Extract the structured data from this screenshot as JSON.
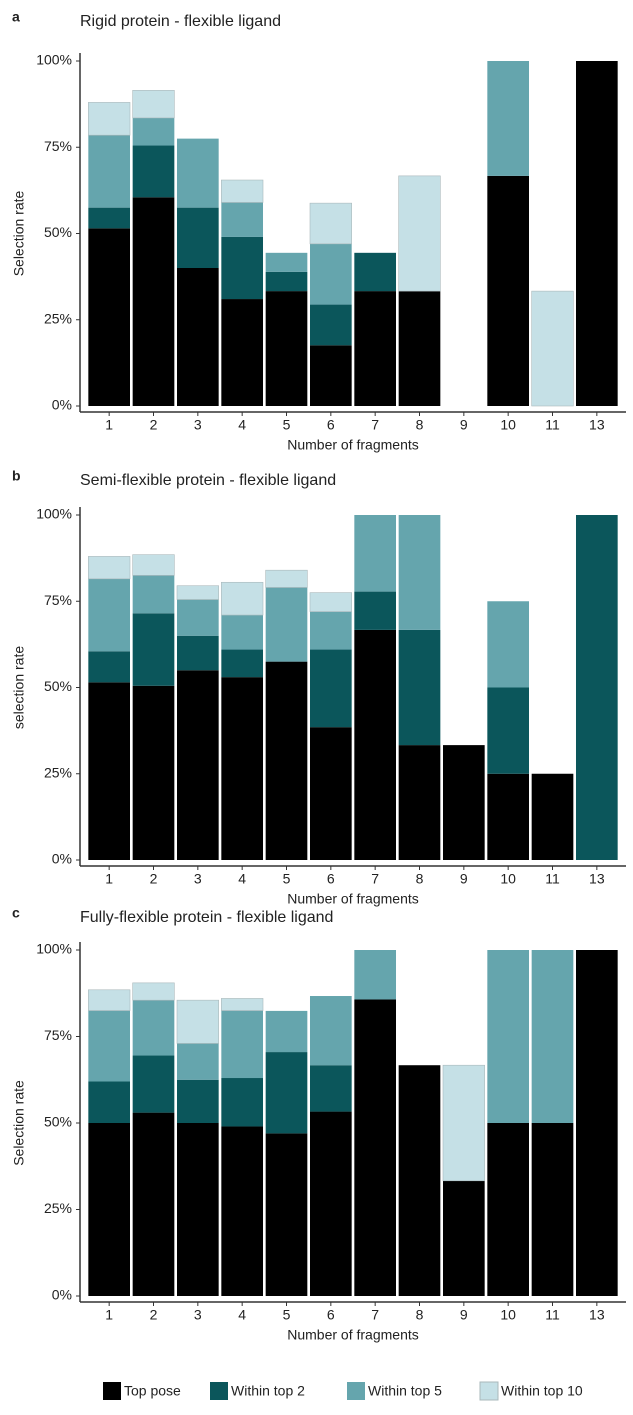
{
  "chart_data": [
    {
      "type": "bar",
      "stacked": true,
      "panel": "a",
      "title": "Rigid protein - flexible ligand",
      "y_label": "Selection rate",
      "x_label": "Number of fragments",
      "categories": [
        "1",
        "2",
        "3",
        "4",
        "5",
        "6",
        "7",
        "8",
        "9",
        "10",
        "11",
        "13"
      ],
      "ylim": [
        0,
        100
      ],
      "yticks": [
        {
          "value": 0,
          "label": "0%"
        },
        {
          "value": 25,
          "label": "25%"
        },
        {
          "value": 50,
          "label": "50%"
        },
        {
          "value": 75,
          "label": "75%"
        },
        {
          "value": 100,
          "label": "100%"
        }
      ],
      "series": [
        {
          "values": [
            51.5,
            60.5,
            40,
            31,
            33.3,
            17.6,
            33.3,
            33.3,
            0,
            66.7,
            0,
            100
          ]
        },
        {
          "values": [
            6,
            15,
            17.5,
            18,
            5.6,
            11.8,
            11.1,
            0,
            0,
            0,
            0,
            0
          ]
        },
        {
          "values": [
            21,
            8,
            20,
            10,
            5.5,
            17.6,
            0,
            0,
            0,
            33.3,
            0,
            0
          ]
        },
        {
          "values": [
            9.5,
            8,
            0,
            6.5,
            0,
            11.8,
            0,
            33.4,
            0,
            0,
            33.3,
            0
          ]
        }
      ]
    },
    {
      "type": "bar",
      "stacked": true,
      "panel": "b",
      "title": "Semi-flexible protein - flexible ligand",
      "y_label": "selection rate",
      "x_label": "Number of fragments",
      "categories": [
        "1",
        "2",
        "3",
        "4",
        "5",
        "6",
        "7",
        "8",
        "9",
        "10",
        "11",
        "13"
      ],
      "ylim": [
        0,
        100
      ],
      "yticks": [
        {
          "value": 0,
          "label": "0%"
        },
        {
          "value": 25,
          "label": "25%"
        },
        {
          "value": 50,
          "label": "50%"
        },
        {
          "value": 75,
          "label": "75%"
        },
        {
          "value": 100,
          "label": "100%"
        }
      ],
      "series": [
        {
          "values": [
            51.5,
            50.5,
            55,
            53,
            57.5,
            38.5,
            66.7,
            33.3,
            33.3,
            25,
            25,
            0
          ]
        },
        {
          "values": [
            9,
            21,
            10,
            8,
            0,
            22.5,
            11.1,
            33.4,
            0,
            25,
            0,
            100
          ]
        },
        {
          "values": [
            21,
            11,
            10.5,
            10,
            21.5,
            11,
            22.2,
            33.3,
            0,
            25,
            0,
            0
          ]
        },
        {
          "values": [
            6.5,
            6,
            4,
            9.5,
            5,
            5.5,
            0,
            0,
            0,
            0,
            0,
            0
          ]
        }
      ]
    },
    {
      "type": "bar",
      "stacked": true,
      "panel": "c",
      "title": "Fully-flexible protein - flexible ligand",
      "y_label": "Selection rate",
      "x_label": "Number of fragments",
      "categories": [
        "1",
        "2",
        "3",
        "4",
        "5",
        "6",
        "7",
        "8",
        "9",
        "10",
        "11",
        "13"
      ],
      "ylim": [
        0,
        100
      ],
      "yticks": [
        {
          "value": 0,
          "label": "0%"
        },
        {
          "value": 25,
          "label": "25%"
        },
        {
          "value": 50,
          "label": "50%"
        },
        {
          "value": 75,
          "label": "75%"
        },
        {
          "value": 100,
          "label": "100%"
        }
      ],
      "series": [
        {
          "values": [
            50,
            53,
            50,
            49,
            47,
            53.3,
            85.7,
            66.7,
            33.3,
            50,
            50,
            100
          ]
        },
        {
          "values": [
            12,
            16.5,
            12.5,
            14,
            23.5,
            13.4,
            0,
            0,
            0,
            0,
            0,
            0
          ]
        },
        {
          "values": [
            20.5,
            16,
            10.5,
            19.5,
            11.9,
            20,
            14.3,
            0,
            0,
            50,
            50,
            0
          ]
        },
        {
          "values": [
            6,
            5,
            12.5,
            3.5,
            0,
            0,
            0,
            0,
            33.4,
            0,
            0,
            0
          ]
        }
      ]
    }
  ],
  "legend": [
    {
      "name": "Top pose",
      "color": "#000000"
    },
    {
      "name": "Within top 2",
      "color": "#0b565b"
    },
    {
      "name": "Within top 5",
      "color": "#65a5ad"
    },
    {
      "name": "Within top 10",
      "color": "#c5e0e6"
    }
  ]
}
